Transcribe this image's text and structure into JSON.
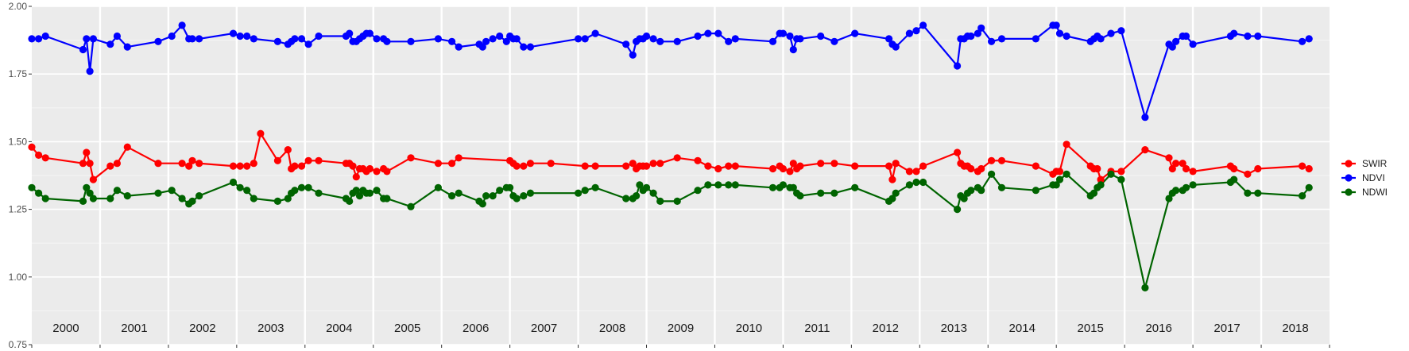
{
  "chart_data": {
    "type": "line",
    "title": "",
    "xlabel": "",
    "ylabel": "",
    "xlim": [
      2000,
      2019
    ],
    "ylim": [
      0.75,
      2.0
    ],
    "y_ticks": [
      "0.75",
      "1.00",
      "1.25",
      "1.50",
      "1.75",
      "2.00"
    ],
    "year_labels": [
      "2000",
      "2001",
      "2002",
      "2003",
      "2004",
      "2005",
      "2006",
      "2007",
      "2008",
      "2009",
      "2010",
      "2011",
      "2012",
      "2013",
      "2014",
      "2015",
      "2016",
      "2017",
      "2018"
    ],
    "grid": true,
    "legend_position": "right",
    "series": [
      {
        "name": "SWIR",
        "color": "#ff0000",
        "x": [
          2000.0,
          2000.1,
          2000.2,
          2000.75,
          2000.8,
          2000.85,
          2000.9,
          2001.15,
          2001.25,
          2001.4,
          2001.85,
          2002.2,
          2002.3,
          2002.35,
          2002.45,
          2002.95,
          2003.05,
          2003.15,
          2003.25,
          2003.35,
          2003.6,
          2003.75,
          2003.8,
          2003.85,
          2003.95,
          2004.05,
          2004.2,
          2004.6,
          2004.65,
          2004.7,
          2004.75,
          2004.8,
          2004.85,
          2004.9,
          2004.95,
          2005.05,
          2005.15,
          2005.2,
          2005.55,
          2005.95,
          2006.15,
          2006.25,
          2007.0,
          2007.05,
          2007.1,
          2007.2,
          2007.3,
          2007.6,
          2008.1,
          2008.25,
          2008.7,
          2008.8,
          2008.85,
          2008.9,
          2008.95,
          2009.0,
          2009.1,
          2009.2,
          2009.45,
          2009.75,
          2009.9,
          2010.05,
          2010.2,
          2010.3,
          2010.85,
          2010.95,
          2011.0,
          2011.1,
          2011.15,
          2011.2,
          2011.25,
          2011.55,
          2011.75,
          2012.05,
          2012.55,
          2012.6,
          2012.65,
          2012.85,
          2012.95,
          2013.05,
          2013.55,
          2013.6,
          2013.65,
          2013.7,
          2013.75,
          2013.85,
          2013.9,
          2014.05,
          2014.2,
          2014.7,
          2014.95,
          2015.0,
          2015.05,
          2015.15,
          2015.5,
          2015.55,
          2015.6,
          2015.65,
          2015.8,
          2015.95,
          2016.3,
          2016.65,
          2016.7,
          2016.75,
          2016.85,
          2016.9,
          2017.0,
          2017.55,
          2017.6,
          2017.8,
          2017.95,
          2018.6,
          2018.7
        ],
        "values": [
          1.48,
          1.45,
          1.44,
          1.42,
          1.46,
          1.42,
          1.36,
          1.41,
          1.42,
          1.48,
          1.42,
          1.42,
          1.41,
          1.43,
          1.42,
          1.41,
          1.41,
          1.41,
          1.42,
          1.53,
          1.43,
          1.47,
          1.4,
          1.41,
          1.41,
          1.43,
          1.43,
          1.42,
          1.42,
          1.41,
          1.37,
          1.4,
          1.4,
          1.39,
          1.4,
          1.39,
          1.4,
          1.39,
          1.44,
          1.42,
          1.42,
          1.44,
          1.43,
          1.42,
          1.41,
          1.41,
          1.42,
          1.42,
          1.41,
          1.41,
          1.41,
          1.42,
          1.4,
          1.41,
          1.41,
          1.41,
          1.42,
          1.42,
          1.44,
          1.43,
          1.41,
          1.4,
          1.41,
          1.41,
          1.4,
          1.41,
          1.4,
          1.39,
          1.42,
          1.4,
          1.41,
          1.42,
          1.42,
          1.41,
          1.41,
          1.36,
          1.42,
          1.39,
          1.39,
          1.41,
          1.46,
          1.42,
          1.41,
          1.41,
          1.4,
          1.39,
          1.4,
          1.43,
          1.43,
          1.41,
          1.38,
          1.39,
          1.39,
          1.49,
          1.41,
          1.4,
          1.4,
          1.36,
          1.39,
          1.39,
          1.47,
          1.44,
          1.4,
          1.42,
          1.42,
          1.4,
          1.39,
          1.41,
          1.4,
          1.38,
          1.4,
          1.41,
          1.4
        ]
      },
      {
        "name": "NDVI",
        "color": "#0000ff",
        "x": [
          2000.0,
          2000.1,
          2000.2,
          2000.75,
          2000.8,
          2000.85,
          2000.9,
          2001.15,
          2001.25,
          2001.4,
          2001.85,
          2002.05,
          2002.2,
          2002.3,
          2002.35,
          2002.45,
          2002.95,
          2003.05,
          2003.15,
          2003.25,
          2003.6,
          2003.75,
          2003.8,
          2003.85,
          2003.95,
          2004.05,
          2004.2,
          2004.6,
          2004.65,
          2004.7,
          2004.75,
          2004.8,
          2004.85,
          2004.9,
          2004.95,
          2005.05,
          2005.15,
          2005.2,
          2005.55,
          2005.95,
          2006.15,
          2006.25,
          2006.55,
          2006.6,
          2006.65,
          2006.75,
          2006.85,
          2006.95,
          2007.0,
          2007.05,
          2007.1,
          2007.2,
          2007.3,
          2008.0,
          2008.1,
          2008.25,
          2008.7,
          2008.8,
          2008.85,
          2008.9,
          2008.95,
          2009.0,
          2009.1,
          2009.2,
          2009.45,
          2009.75,
          2009.9,
          2010.05,
          2010.2,
          2010.3,
          2010.85,
          2010.95,
          2011.0,
          2011.1,
          2011.15,
          2011.2,
          2011.25,
          2011.55,
          2011.75,
          2012.05,
          2012.55,
          2012.6,
          2012.65,
          2012.85,
          2012.95,
          2013.05,
          2013.55,
          2013.6,
          2013.65,
          2013.7,
          2013.75,
          2013.85,
          2013.9,
          2014.05,
          2014.2,
          2014.7,
          2014.95,
          2015.0,
          2015.05,
          2015.15,
          2015.5,
          2015.55,
          2015.6,
          2015.65,
          2015.8,
          2015.95,
          2016.3,
          2016.65,
          2016.7,
          2016.75,
          2016.85,
          2016.9,
          2017.0,
          2017.55,
          2017.6,
          2017.8,
          2017.95,
          2018.6,
          2018.7
        ],
        "values": [
          1.88,
          1.88,
          1.89,
          1.84,
          1.88,
          1.76,
          1.88,
          1.86,
          1.89,
          1.85,
          1.87,
          1.89,
          1.93,
          1.88,
          1.88,
          1.88,
          1.9,
          1.89,
          1.89,
          1.88,
          1.87,
          1.86,
          1.87,
          1.88,
          1.88,
          1.86,
          1.89,
          1.89,
          1.9,
          1.87,
          1.87,
          1.88,
          1.89,
          1.9,
          1.9,
          1.88,
          1.88,
          1.87,
          1.87,
          1.88,
          1.87,
          1.85,
          1.86,
          1.85,
          1.87,
          1.88,
          1.89,
          1.87,
          1.89,
          1.88,
          1.88,
          1.85,
          1.85,
          1.88,
          1.88,
          1.9,
          1.86,
          1.82,
          1.87,
          1.88,
          1.88,
          1.89,
          1.88,
          1.87,
          1.87,
          1.89,
          1.9,
          1.9,
          1.87,
          1.88,
          1.87,
          1.9,
          1.9,
          1.89,
          1.84,
          1.88,
          1.88,
          1.89,
          1.87,
          1.9,
          1.88,
          1.86,
          1.85,
          1.9,
          1.91,
          1.93,
          1.78,
          1.88,
          1.88,
          1.89,
          1.89,
          1.9,
          1.92,
          1.87,
          1.88,
          1.88,
          1.93,
          1.93,
          1.9,
          1.89,
          1.87,
          1.88,
          1.89,
          1.88,
          1.9,
          1.91,
          1.59,
          1.86,
          1.85,
          1.87,
          1.89,
          1.89,
          1.86,
          1.89,
          1.9,
          1.89,
          1.89,
          1.87,
          1.88
        ]
      },
      {
        "name": "NDWI",
        "color": "#006400",
        "x": [
          2000.0,
          2000.1,
          2000.2,
          2000.75,
          2000.8,
          2000.85,
          2000.9,
          2001.15,
          2001.25,
          2001.4,
          2001.85,
          2002.05,
          2002.2,
          2002.3,
          2002.35,
          2002.45,
          2002.95,
          2003.05,
          2003.15,
          2003.25,
          2003.6,
          2003.75,
          2003.8,
          2003.85,
          2003.95,
          2004.05,
          2004.2,
          2004.6,
          2004.65,
          2004.7,
          2004.75,
          2004.8,
          2004.85,
          2004.9,
          2004.95,
          2005.05,
          2005.15,
          2005.2,
          2005.55,
          2005.95,
          2006.15,
          2006.25,
          2006.55,
          2006.6,
          2006.65,
          2006.75,
          2006.85,
          2006.95,
          2007.0,
          2007.05,
          2007.1,
          2007.2,
          2007.3,
          2008.0,
          2008.1,
          2008.25,
          2008.7,
          2008.8,
          2008.85,
          2008.9,
          2008.95,
          2009.0,
          2009.1,
          2009.2,
          2009.45,
          2009.75,
          2009.9,
          2010.05,
          2010.2,
          2010.3,
          2010.85,
          2010.95,
          2011.0,
          2011.1,
          2011.15,
          2011.2,
          2011.25,
          2011.55,
          2011.75,
          2012.05,
          2012.55,
          2012.6,
          2012.65,
          2012.85,
          2012.95,
          2013.05,
          2013.55,
          2013.6,
          2013.65,
          2013.7,
          2013.75,
          2013.85,
          2013.9,
          2014.05,
          2014.2,
          2014.7,
          2014.95,
          2015.0,
          2015.05,
          2015.15,
          2015.5,
          2015.55,
          2015.6,
          2015.65,
          2015.8,
          2015.95,
          2016.3,
          2016.65,
          2016.7,
          2016.75,
          2016.85,
          2016.9,
          2017.0,
          2017.55,
          2017.6,
          2017.8,
          2017.95,
          2018.6,
          2018.7
        ],
        "values": [
          1.33,
          1.31,
          1.29,
          1.28,
          1.33,
          1.31,
          1.29,
          1.29,
          1.32,
          1.3,
          1.31,
          1.32,
          1.29,
          1.27,
          1.28,
          1.3,
          1.35,
          1.33,
          1.32,
          1.29,
          1.28,
          1.29,
          1.31,
          1.32,
          1.33,
          1.33,
          1.31,
          1.29,
          1.28,
          1.31,
          1.32,
          1.3,
          1.32,
          1.31,
          1.31,
          1.32,
          1.29,
          1.29,
          1.26,
          1.33,
          1.3,
          1.31,
          1.28,
          1.27,
          1.3,
          1.3,
          1.32,
          1.33,
          1.33,
          1.3,
          1.29,
          1.3,
          1.31,
          1.31,
          1.32,
          1.33,
          1.29,
          1.29,
          1.3,
          1.34,
          1.32,
          1.33,
          1.31,
          1.28,
          1.28,
          1.32,
          1.34,
          1.34,
          1.34,
          1.34,
          1.33,
          1.33,
          1.34,
          1.33,
          1.33,
          1.31,
          1.3,
          1.31,
          1.31,
          1.33,
          1.28,
          1.29,
          1.31,
          1.34,
          1.35,
          1.35,
          1.25,
          1.3,
          1.29,
          1.31,
          1.32,
          1.33,
          1.32,
          1.38,
          1.33,
          1.32,
          1.34,
          1.34,
          1.36,
          1.38,
          1.3,
          1.31,
          1.33,
          1.34,
          1.38,
          1.36,
          0.96,
          1.29,
          1.31,
          1.32,
          1.32,
          1.33,
          1.34,
          1.35,
          1.36,
          1.31,
          1.31,
          1.3,
          1.33
        ]
      }
    ]
  }
}
